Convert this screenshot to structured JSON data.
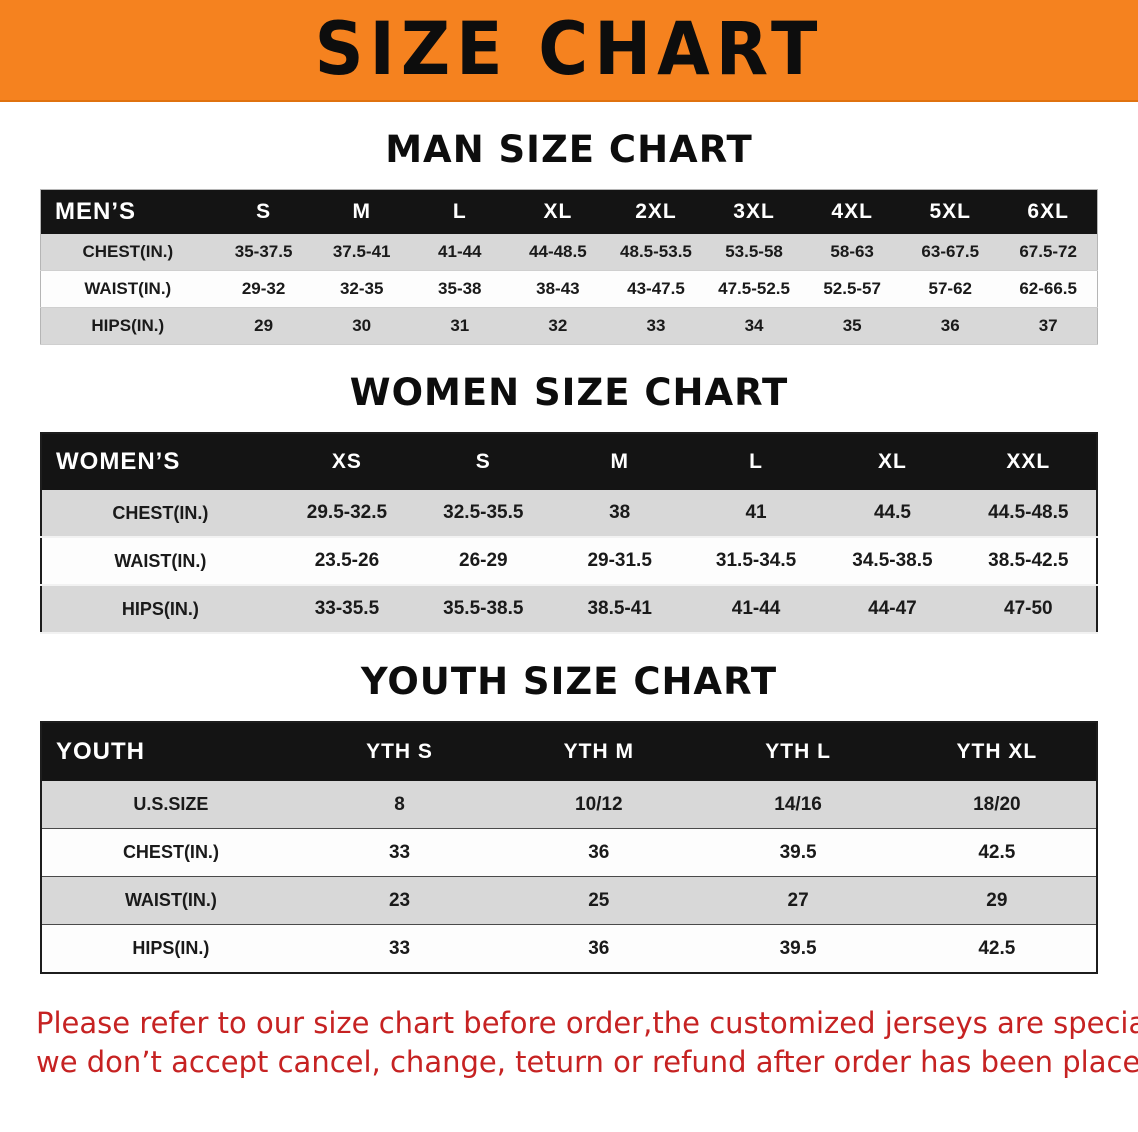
{
  "banner": {
    "title": "SIZE CHART",
    "bg": "#f5821f"
  },
  "tables": [
    {
      "heading": "MAN SIZE CHART",
      "header": [
        "MEN’S",
        "S",
        "M",
        "L",
        "XL",
        "2XL",
        "3XL",
        "4XL",
        "5XL",
        "6XL"
      ],
      "rows": [
        {
          "label": "CHEST(IN.)",
          "values": [
            "35-37.5",
            "37.5-41",
            "41-44",
            "44-48.5",
            "48.5-53.5",
            "53.5-58",
            "58-63",
            "63-67.5",
            "67.5-72"
          ]
        },
        {
          "label": "WAIST(IN.)",
          "values": [
            "29-32",
            "32-35",
            "35-38",
            "38-43",
            "43-47.5",
            "47.5-52.5",
            "52.5-57",
            "57-62",
            "62-66.5"
          ]
        },
        {
          "label": "HIPS(IN.)",
          "values": [
            "29",
            "30",
            "31",
            "32",
            "33",
            "34",
            "35",
            "36",
            "37"
          ]
        }
      ]
    },
    {
      "heading": "WOMEN SIZE CHART",
      "header": [
        "WOMEN’S",
        "XS",
        "S",
        "M",
        "L",
        "XL",
        "XXL"
      ],
      "rows": [
        {
          "label": "CHEST(IN.)",
          "values": [
            "29.5-32.5",
            "32.5-35.5",
            "38",
            "41",
            "44.5",
            "44.5-48.5"
          ]
        },
        {
          "label": "WAIST(IN.)",
          "values": [
            "23.5-26",
            "26-29",
            "29-31.5",
            "31.5-34.5",
            "34.5-38.5",
            "38.5-42.5"
          ]
        },
        {
          "label": "HIPS(IN.)",
          "values": [
            "33-35.5",
            "35.5-38.5",
            "38.5-41",
            "41-44",
            "44-47",
            "47-50"
          ]
        }
      ]
    },
    {
      "heading": "YOUTH SIZE CHART",
      "header": [
        "YOUTH",
        "YTH S",
        "YTH M",
        "YTH L",
        "YTH XL"
      ],
      "rows": [
        {
          "label": "U.S.SIZE",
          "values": [
            "8",
            "10/12",
            "14/16",
            "18/20"
          ]
        },
        {
          "label": "CHEST(IN.)",
          "values": [
            "33",
            "36",
            "39.5",
            "42.5"
          ]
        },
        {
          "label": "WAIST(IN.)",
          "values": [
            "23",
            "25",
            "27",
            "29"
          ]
        },
        {
          "label": "HIPS(IN.)",
          "values": [
            "33",
            "36",
            "39.5",
            "42.5"
          ]
        }
      ]
    }
  ],
  "notice": {
    "color": "#c62222",
    "line1": "Please refer to our size chart before order,the customized jerseys are special products,",
    "line2": "we don’t accept cancel, change, teturn or refund after order has been placed!"
  }
}
